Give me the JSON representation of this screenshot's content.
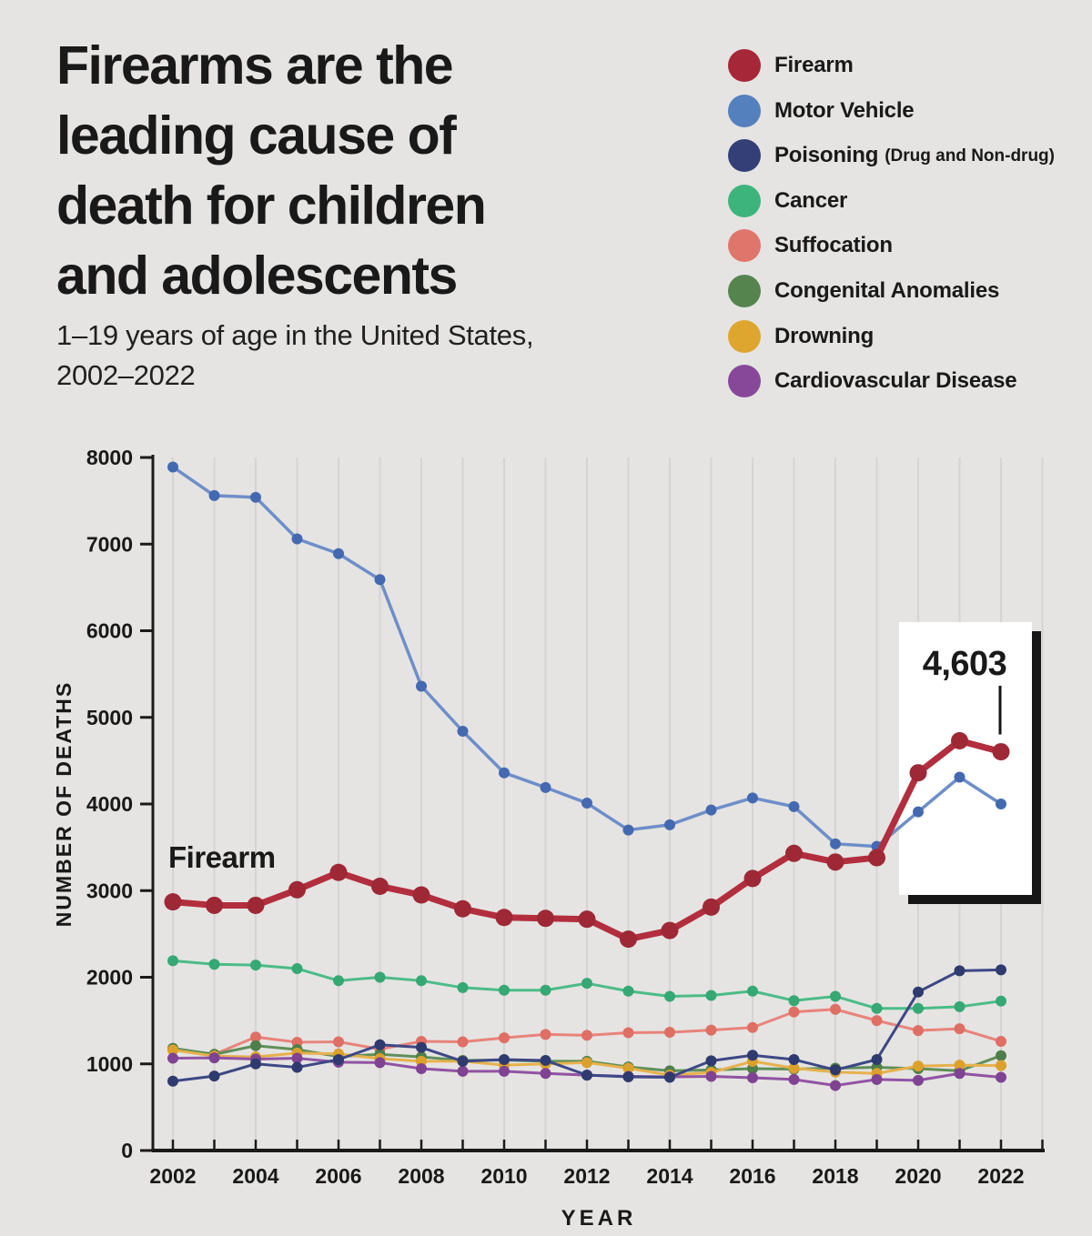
{
  "header": {
    "title_lines": [
      "Firearms are the",
      "leading cause of",
      "death for children",
      "and adolescents"
    ],
    "subtitle_lines": [
      "1–19 years of age in the United States,",
      "2002–2022"
    ]
  },
  "legend": {
    "items": [
      {
        "label": "Firearm",
        "sublabel": "",
        "color": "#A62737"
      },
      {
        "label": "Motor Vehicle",
        "sublabel": "",
        "color": "#5580BE"
      },
      {
        "label": "Poisoning",
        "sublabel": "(Drug and Non-drug)",
        "color": "#343F77"
      },
      {
        "label": "Cancer",
        "sublabel": "",
        "color": "#3EB47D"
      },
      {
        "label": "Suffocation",
        "sublabel": "",
        "color": "#E0756C"
      },
      {
        "label": "Congenital Anomalies",
        "sublabel": "",
        "color": "#55844F"
      },
      {
        "label": "Drowning",
        "sublabel": "",
        "color": "#DFA62F"
      },
      {
        "label": "Cardiovascular Disease",
        "sublabel": "",
        "color": "#87489A"
      }
    ]
  },
  "chart_data": {
    "type": "line",
    "title": "Firearms are the leading cause of death for children and adolescents",
    "subtitle": "1–19 years of age in the United States, 2002–2022",
    "xlabel": "YEAR",
    "ylabel": "NUMBER OF DEATHS",
    "ylim": [
      0,
      8000
    ],
    "ytick_step": 1000,
    "grid": "vertical",
    "legend_position": "top-right",
    "x": [
      2002,
      2003,
      2004,
      2005,
      2006,
      2007,
      2008,
      2009,
      2010,
      2011,
      2012,
      2013,
      2014,
      2015,
      2016,
      2017,
      2018,
      2019,
      2020,
      2021,
      2022
    ],
    "xtick_labels": [
      2002,
      2004,
      2006,
      2008,
      2010,
      2012,
      2014,
      2016,
      2018,
      2020,
      2022
    ],
    "series": [
      {
        "name": "Firearm",
        "color": "#B22E3E",
        "dot_color": "#9E2836",
        "values": [
          2870,
          2830,
          2830,
          3010,
          3210,
          3050,
          2950,
          2790,
          2690,
          2680,
          2670,
          2440,
          2540,
          2810,
          3140,
          3430,
          3330,
          3380,
          4360,
          4730,
          4603
        ]
      },
      {
        "name": "Motor Vehicle",
        "color": "#6E8EC9",
        "dot_color": "#4569B0",
        "values": [
          7890,
          7560,
          7540,
          7060,
          6890,
          6590,
          5360,
          4840,
          4360,
          4190,
          4010,
          3700,
          3760,
          3930,
          4070,
          3970,
          3540,
          3510,
          3910,
          4310,
          4000
        ]
      },
      {
        "name": "Poisoning (Drug and Non-drug)",
        "color": "#3D4886",
        "dot_color": "#2F3A6E",
        "values": [
          800,
          860,
          1000,
          960,
          1050,
          1220,
          1190,
          1030,
          1050,
          1040,
          870,
          850,
          845,
          1035,
          1100,
          1050,
          930,
          1050,
          1830,
          2075,
          2085
        ]
      },
      {
        "name": "Cancer",
        "color": "#4CBB88",
        "dot_color": "#36A873",
        "values": [
          2190,
          2150,
          2140,
          2100,
          1960,
          2000,
          1960,
          1880,
          1850,
          1850,
          1930,
          1840,
          1780,
          1790,
          1840,
          1730,
          1780,
          1640,
          1640,
          1660,
          1725
        ]
      },
      {
        "name": "Suffocation",
        "color": "#E8837B",
        "dot_color": "#DF6F65",
        "values": [
          1160,
          1110,
          1310,
          1250,
          1255,
          1170,
          1260,
          1255,
          1300,
          1340,
          1330,
          1360,
          1365,
          1390,
          1420,
          1600,
          1630,
          1500,
          1385,
          1405,
          1260
        ]
      },
      {
        "name": "Congenital Anomalies",
        "color": "#5F8F59",
        "dot_color": "#4F7E4A",
        "values": [
          1180,
          1110,
          1210,
          1165,
          1085,
          1110,
          1080,
          1040,
          1045,
          1030,
          1030,
          965,
          920,
          930,
          945,
          940,
          950,
          960,
          945,
          920,
          1095
        ]
      },
      {
        "name": "Drowning",
        "color": "#E7B14D",
        "dot_color": "#DCA02C",
        "values": [
          1160,
          1090,
          1080,
          1125,
          1115,
          1060,
          1030,
          1030,
          985,
          1000,
          1015,
          950,
          870,
          900,
          1030,
          950,
          905,
          890,
          975,
          985,
          980
        ]
      },
      {
        "name": "Cardiovascular Disease",
        "color": "#9153A3",
        "dot_color": "#7F4392",
        "values": [
          1065,
          1070,
          1055,
          1065,
          1020,
          1015,
          945,
          915,
          915,
          890,
          870,
          855,
          850,
          855,
          840,
          820,
          750,
          820,
          810,
          890,
          845
        ]
      }
    ],
    "annotation": {
      "text": "4,603",
      "target_series": "Firearm",
      "target_year": 2022
    },
    "inline_label": {
      "text": "Firearm"
    }
  },
  "theme": {
    "background": "#E5E4E2",
    "text": "#191919",
    "grid": "#D5D4D2",
    "axis": "#1A1A1A",
    "callout_bg": "#FFFFFF",
    "callout_shadow": "#161616"
  }
}
